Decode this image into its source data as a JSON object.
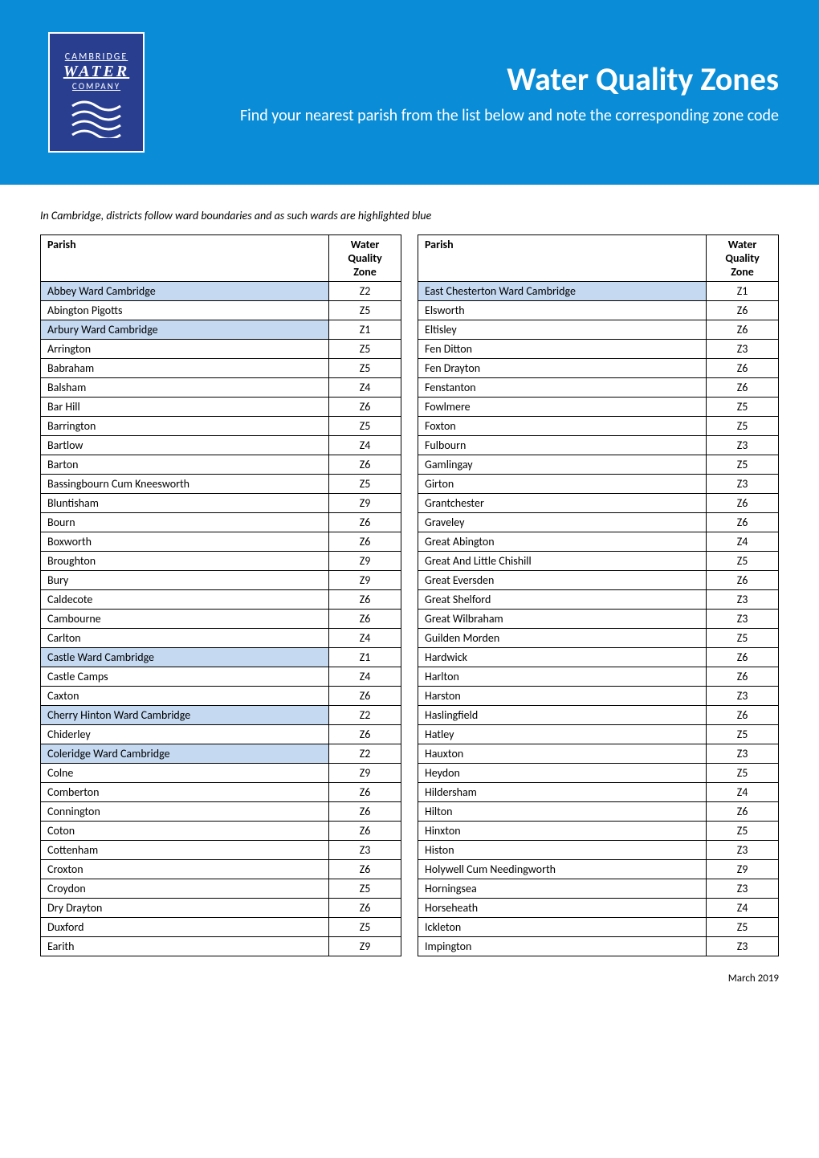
{
  "logo": {
    "line1": "CAMBRIDGE",
    "line2": "WATER",
    "line3": "COMPANY"
  },
  "header": {
    "title": "Water Quality Zones",
    "subtitle": "Find your nearest parish from the list below and note the corresponding zone code"
  },
  "note": "In Cambridge, districts follow ward boundaries and as such wards are highlighted blue",
  "columns": {
    "parish": "Parish",
    "zone": "Water Quality Zone"
  },
  "table1": [
    {
      "parish": "Abbey Ward Cambridge",
      "zone": "Z2",
      "ward": true
    },
    {
      "parish": "Abington Pigotts",
      "zone": "Z5",
      "ward": false
    },
    {
      "parish": "Arbury Ward Cambridge",
      "zone": "Z1",
      "ward": true
    },
    {
      "parish": "Arrington",
      "zone": "Z5",
      "ward": false
    },
    {
      "parish": "Babraham",
      "zone": "Z5",
      "ward": false
    },
    {
      "parish": "Balsham",
      "zone": "Z4",
      "ward": false
    },
    {
      "parish": "Bar Hill",
      "zone": "Z6",
      "ward": false
    },
    {
      "parish": "Barrington",
      "zone": "Z5",
      "ward": false
    },
    {
      "parish": "Bartlow",
      "zone": "Z4",
      "ward": false
    },
    {
      "parish": "Barton",
      "zone": "Z6",
      "ward": false
    },
    {
      "parish": "Bassingbourn Cum Kneesworth",
      "zone": "Z5",
      "ward": false
    },
    {
      "parish": "Bluntisham",
      "zone": "Z9",
      "ward": false
    },
    {
      "parish": "Bourn",
      "zone": "Z6",
      "ward": false
    },
    {
      "parish": "Boxworth",
      "zone": "Z6",
      "ward": false
    },
    {
      "parish": "Broughton",
      "zone": "Z9",
      "ward": false
    },
    {
      "parish": "Bury",
      "zone": "Z9",
      "ward": false
    },
    {
      "parish": "Caldecote",
      "zone": "Z6",
      "ward": false
    },
    {
      "parish": "Cambourne",
      "zone": "Z6",
      "ward": false
    },
    {
      "parish": "Carlton",
      "zone": "Z4",
      "ward": false
    },
    {
      "parish": "Castle Ward Cambridge",
      "zone": "Z1",
      "ward": true
    },
    {
      "parish": "Castle Camps",
      "zone": "Z4",
      "ward": false
    },
    {
      "parish": "Caxton",
      "zone": "Z6",
      "ward": false
    },
    {
      "parish": "Cherry Hinton Ward Cambridge",
      "zone": "Z2",
      "ward": true
    },
    {
      "parish": "Chiderley",
      "zone": "Z6",
      "ward": false
    },
    {
      "parish": "Coleridge Ward Cambridge",
      "zone": "Z2",
      "ward": true
    },
    {
      "parish": "Colne",
      "zone": "Z9",
      "ward": false
    },
    {
      "parish": "Comberton",
      "zone": "Z6",
      "ward": false
    },
    {
      "parish": "Connington",
      "zone": "Z6",
      "ward": false
    },
    {
      "parish": "Coton",
      "zone": "Z6",
      "ward": false
    },
    {
      "parish": "Cottenham",
      "zone": "Z3",
      "ward": false
    },
    {
      "parish": "Croxton",
      "zone": "Z6",
      "ward": false
    },
    {
      "parish": "Croydon",
      "zone": "Z5",
      "ward": false
    },
    {
      "parish": "Dry Drayton",
      "zone": "Z6",
      "ward": false
    },
    {
      "parish": "Duxford",
      "zone": "Z5",
      "ward": false
    },
    {
      "parish": "Earith",
      "zone": "Z9",
      "ward": false
    }
  ],
  "table2": [
    {
      "parish": "East Chesterton Ward Cambridge",
      "zone": "Z1",
      "ward": true
    },
    {
      "parish": "Elsworth",
      "zone": "Z6",
      "ward": false
    },
    {
      "parish": "Eltisley",
      "zone": "Z6",
      "ward": false
    },
    {
      "parish": "Fen Ditton",
      "zone": "Z3",
      "ward": false
    },
    {
      "parish": "Fen Drayton",
      "zone": "Z6",
      "ward": false
    },
    {
      "parish": "Fenstanton",
      "zone": "Z6",
      "ward": false
    },
    {
      "parish": "Fowlmere",
      "zone": "Z5",
      "ward": false
    },
    {
      "parish": "Foxton",
      "zone": "Z5",
      "ward": false
    },
    {
      "parish": "Fulbourn",
      "zone": "Z3",
      "ward": false
    },
    {
      "parish": "Gamlingay",
      "zone": "Z5",
      "ward": false
    },
    {
      "parish": "Girton",
      "zone": "Z3",
      "ward": false
    },
    {
      "parish": "Grantchester",
      "zone": "Z6",
      "ward": false
    },
    {
      "parish": "Graveley",
      "zone": "Z6",
      "ward": false
    },
    {
      "parish": "Great Abington",
      "zone": "Z4",
      "ward": false
    },
    {
      "parish": "Great And Little Chishill",
      "zone": "Z5",
      "ward": false
    },
    {
      "parish": "Great Eversden",
      "zone": "Z6",
      "ward": false
    },
    {
      "parish": "Great Shelford",
      "zone": "Z3",
      "ward": false
    },
    {
      "parish": "Great Wilbraham",
      "zone": "Z3",
      "ward": false
    },
    {
      "parish": "Guilden Morden",
      "zone": "Z5",
      "ward": false
    },
    {
      "parish": "Hardwick",
      "zone": "Z6",
      "ward": false
    },
    {
      "parish": "Harlton",
      "zone": "Z6",
      "ward": false
    },
    {
      "parish": "Harston",
      "zone": "Z3",
      "ward": false
    },
    {
      "parish": "Haslingfield",
      "zone": "Z6",
      "ward": false
    },
    {
      "parish": "Hatley",
      "zone": "Z5",
      "ward": false
    },
    {
      "parish": "Hauxton",
      "zone": "Z3",
      "ward": false
    },
    {
      "parish": "Heydon",
      "zone": "Z5",
      "ward": false
    },
    {
      "parish": "Hildersham",
      "zone": "Z4",
      "ward": false
    },
    {
      "parish": "Hilton",
      "zone": "Z6",
      "ward": false
    },
    {
      "parish": "Hinxton",
      "zone": "Z5",
      "ward": false
    },
    {
      "parish": "Histon",
      "zone": "Z3",
      "ward": false
    },
    {
      "parish": "Holywell Cum Needingworth",
      "zone": "Z9",
      "ward": false
    },
    {
      "parish": "Horningsea",
      "zone": "Z3",
      "ward": false
    },
    {
      "parish": "Horseheath",
      "zone": "Z4",
      "ward": false
    },
    {
      "parish": "Ickleton",
      "zone": "Z5",
      "ward": false
    },
    {
      "parish": "Impington",
      "zone": "Z3",
      "ward": false
    }
  ],
  "footer": "March 2019",
  "styling": {
    "header_bg": "#0a8dd6",
    "logo_bg": "#2a3e8f",
    "ward_highlight": "#c5d9f1",
    "border_color": "#000000",
    "title_fontsize": 40,
    "subtitle_fontsize": 20,
    "body_fontsize": 14,
    "note_fontsize": 14,
    "footer_fontsize": 13
  }
}
